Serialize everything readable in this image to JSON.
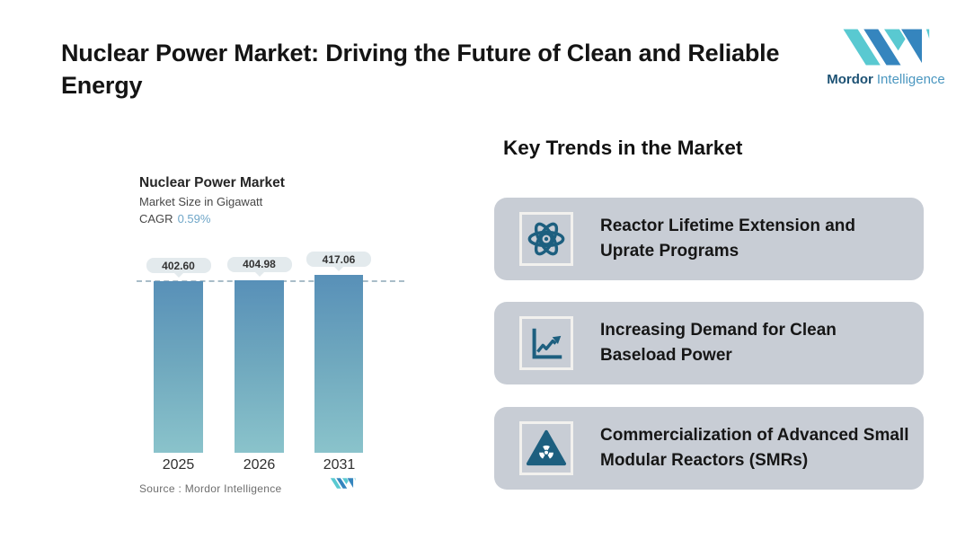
{
  "page": {
    "title": "Nuclear Power Market: Driving the Future of Clean and Reliable Energy"
  },
  "brand": {
    "name_primary": "Mordor",
    "name_secondary": "Intelligence",
    "teal": "#59c9d1",
    "blue": "#3585be"
  },
  "chart": {
    "title": "Nuclear Power Market",
    "subtitle": "Market Size in Gigawatt",
    "cagr_label": "CAGR",
    "cagr_value": "0.59%",
    "source": "Source :  Mordor Intelligence"
  },
  "chart_data": {
    "type": "bar",
    "title": "Nuclear Power Market",
    "ylabel": "Market Size in Gigawatt",
    "categories": [
      "2025",
      "2026",
      "2031"
    ],
    "values": [
      402.6,
      404.98,
      417.06
    ],
    "value_labels": [
      "402.60",
      "404.98",
      "417.06"
    ],
    "annotations": [
      "CAGR 0.59%",
      "dashed reference line at 2025 level"
    ],
    "axis_truncated": true,
    "grid": "off",
    "legend": "none",
    "bar_gradient_top": "#5890b8",
    "bar_gradient_bottom": "#8ac3cb"
  },
  "trends": {
    "heading": "Key Trends in the Market",
    "card_bg": "#c8cdd5",
    "icon_color": "#1d5f7f",
    "cards": [
      {
        "icon": "atom-icon",
        "text": "Reactor Lifetime Extension and Uprate Programs"
      },
      {
        "icon": "line-chart-icon",
        "text": "Increasing Demand for Clean Baseload Power"
      },
      {
        "icon": "radiation-triangle-icon",
        "text": "Commercialization of Advanced Small Modular Reactors (SMRs)"
      }
    ]
  }
}
